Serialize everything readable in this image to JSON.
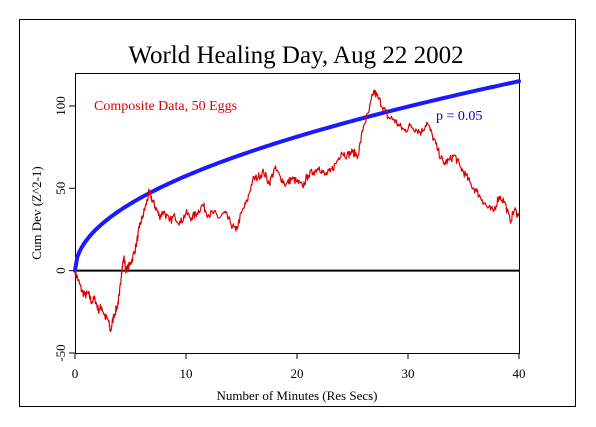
{
  "chart_data": {
    "type": "line",
    "title": "World Healing Day, Aug 22 2002",
    "xlabel": "Number of Minutes (Res Secs)",
    "ylabel": "Cum Dev (Z^2-1)",
    "xlim": [
      0,
      40
    ],
    "ylim": [
      -50,
      120
    ],
    "xticks": [
      0,
      10,
      20,
      30,
      40
    ],
    "yticks": [
      -50,
      0,
      50,
      100
    ],
    "grid": false,
    "annotations": {
      "composite_label": "Composite Data, 50 Eggs",
      "p_label": "p = 0.05"
    },
    "series": [
      {
        "name": "Composite Data, 50 Eggs",
        "color": "#dd0000",
        "points": [
          [
            0,
            0
          ],
          [
            0.3,
            -6
          ],
          [
            0.6,
            -12
          ],
          [
            0.9,
            -15
          ],
          [
            1.2,
            -14
          ],
          [
            1.5,
            -19
          ],
          [
            1.8,
            -17
          ],
          [
            2.1,
            -24
          ],
          [
            2.4,
            -22
          ],
          [
            2.7,
            -28
          ],
          [
            3.0,
            -30
          ],
          [
            3.2,
            -37
          ],
          [
            3.5,
            -27
          ],
          [
            3.8,
            -22
          ],
          [
            4.0,
            -15
          ],
          [
            4.2,
            0
          ],
          [
            4.4,
            8
          ],
          [
            4.6,
            0
          ],
          [
            4.9,
            3
          ],
          [
            5.2,
            8
          ],
          [
            5.5,
            15
          ],
          [
            5.8,
            26
          ],
          [
            6.1,
            33
          ],
          [
            6.4,
            40
          ],
          [
            6.7,
            48
          ],
          [
            7.0,
            42
          ],
          [
            7.3,
            38
          ],
          [
            7.6,
            33
          ],
          [
            8.0,
            36
          ],
          [
            8.5,
            30
          ],
          [
            9.0,
            33
          ],
          [
            9.5,
            29
          ],
          [
            10.0,
            35
          ],
          [
            10.5,
            32
          ],
          [
            11.0,
            35
          ],
          [
            11.5,
            40
          ],
          [
            12.0,
            34
          ],
          [
            12.5,
            35
          ],
          [
            13.0,
            32
          ],
          [
            13.5,
            35
          ],
          [
            14.0,
            29
          ],
          [
            14.5,
            24
          ],
          [
            15.0,
            35
          ],
          [
            15.5,
            42
          ],
          [
            16.0,
            55
          ],
          [
            16.5,
            57
          ],
          [
            17.0,
            60
          ],
          [
            17.5,
            53
          ],
          [
            18.0,
            62
          ],
          [
            18.5,
            57
          ],
          [
            19.0,
            52
          ],
          [
            19.5,
            56
          ],
          [
            20.0,
            54
          ],
          [
            20.5,
            51
          ],
          [
            21.0,
            58
          ],
          [
            21.5,
            60
          ],
          [
            22.0,
            63
          ],
          [
            22.5,
            58
          ],
          [
            23.0,
            60
          ],
          [
            23.5,
            65
          ],
          [
            24.0,
            72
          ],
          [
            24.5,
            70
          ],
          [
            25.0,
            72
          ],
          [
            25.5,
            70
          ],
          [
            26.0,
            88
          ],
          [
            26.5,
            97
          ],
          [
            26.9,
            109
          ],
          [
            27.3,
            105
          ],
          [
            27.8,
            99
          ],
          [
            28.2,
            93
          ],
          [
            28.7,
            92
          ],
          [
            29.2,
            88
          ],
          [
            29.7,
            85
          ],
          [
            30.2,
            88
          ],
          [
            30.7,
            86
          ],
          [
            31.2,
            84
          ],
          [
            31.7,
            90
          ],
          [
            32.2,
            82
          ],
          [
            32.7,
            73
          ],
          [
            33.2,
            65
          ],
          [
            33.7,
            67
          ],
          [
            34.2,
            70
          ],
          [
            34.7,
            63
          ],
          [
            35.2,
            58
          ],
          [
            35.7,
            52
          ],
          [
            36.2,
            48
          ],
          [
            36.7,
            43
          ],
          [
            37.2,
            38
          ],
          [
            37.7,
            36
          ],
          [
            38.2,
            45
          ],
          [
            38.7,
            42
          ],
          [
            39.2,
            30
          ],
          [
            39.6,
            37
          ],
          [
            40.0,
            33
          ]
        ]
      },
      {
        "name": "p = 0.05",
        "color": "#0000ff",
        "type": "envelope",
        "formula": "1.645*sqrt(2*N)",
        "x_range": [
          0,
          40
        ],
        "endpoint_value": 115
      }
    ]
  }
}
